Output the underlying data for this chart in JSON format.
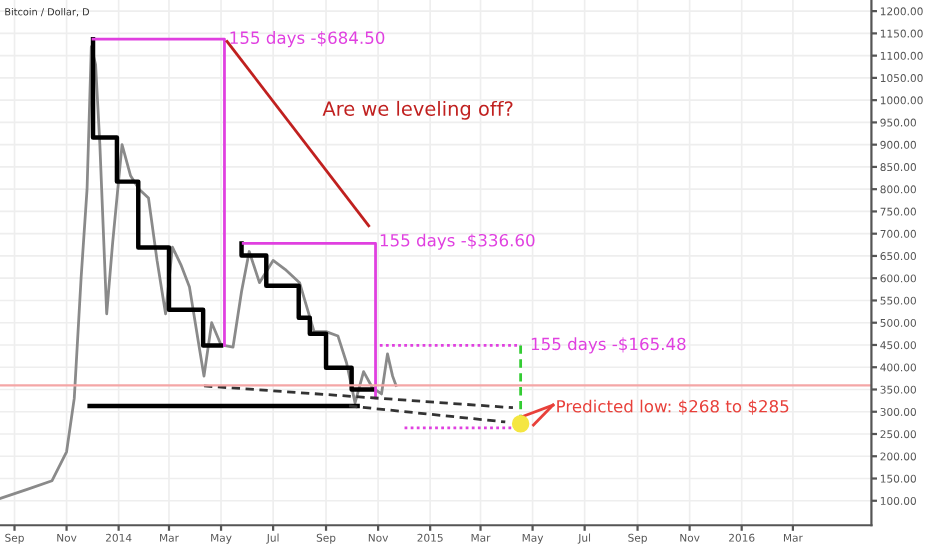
{
  "chart_data": {
    "type": "line",
    "title": "Bitcoin / Dollar, D",
    "xlim": [
      "2013-08-15",
      "2016-06-01"
    ],
    "xticks": [
      {
        "value": "2013-09-01",
        "label": "Sep"
      },
      {
        "value": "2013-11-01",
        "label": "Nov"
      },
      {
        "value": "2014-01-01",
        "label": "2014"
      },
      {
        "value": "2014-03-01",
        "label": "Mar"
      },
      {
        "value": "2014-05-01",
        "label": "May"
      },
      {
        "value": "2014-07-01",
        "label": "Jul"
      },
      {
        "value": "2014-09-01",
        "label": "Sep"
      },
      {
        "value": "2014-11-01",
        "label": "Nov"
      },
      {
        "value": "2015-01-01",
        "label": "2015"
      },
      {
        "value": "2015-03-01",
        "label": "Mar"
      },
      {
        "value": "2015-05-01",
        "label": "May"
      },
      {
        "value": "2015-07-01",
        "label": "Jul"
      },
      {
        "value": "2015-09-01",
        "label": "Sep"
      },
      {
        "value": "2015-11-01",
        "label": "Nov"
      },
      {
        "value": "2016-01-01",
        "label": "2016"
      },
      {
        "value": "2016-03-01",
        "label": "Mar"
      }
    ],
    "ylim": [
      45,
      1225
    ],
    "yticks": [
      {
        "value": 100,
        "label": "100.00"
      },
      {
        "value": 150,
        "label": "150.00"
      },
      {
        "value": 200,
        "label": "200.00"
      },
      {
        "value": 250,
        "label": "250.00"
      },
      {
        "value": 300,
        "label": "300.00"
      },
      {
        "value": 350,
        "label": "350.00"
      },
      {
        "value": 400,
        "label": "400.00"
      },
      {
        "value": 450,
        "label": "450.00"
      },
      {
        "value": 500,
        "label": "500.00"
      },
      {
        "value": 550,
        "label": "550.00"
      },
      {
        "value": 600,
        "label": "600.00"
      },
      {
        "value": 650,
        "label": "650.00"
      },
      {
        "value": 700,
        "label": "700.00"
      },
      {
        "value": 750,
        "label": "750.00"
      },
      {
        "value": 800,
        "label": "800.00"
      },
      {
        "value": 850,
        "label": "850.00"
      },
      {
        "value": 900,
        "label": "900.00"
      },
      {
        "value": 950,
        "label": "950.00"
      },
      {
        "value": 1000,
        "label": "1000.00"
      },
      {
        "value": 1050,
        "label": "1050.00"
      },
      {
        "value": 1100,
        "label": "1100.00"
      },
      {
        "value": 1150,
        "label": "1150.00"
      },
      {
        "value": 1200,
        "label": "1200.00"
      }
    ],
    "grid": true,
    "series": [
      {
        "color": "#8a8a8a",
        "x": [
          "2013-08-15",
          "2013-09-15",
          "2013-10-15",
          "2013-11-01",
          "2013-11-10",
          "2013-11-18",
          "2013-11-25",
          "2013-11-30",
          "2013-12-05",
          "2013-12-10",
          "2013-12-18",
          "2013-12-25",
          "2014-01-05",
          "2014-01-15",
          "2014-01-25",
          "2014-02-05",
          "2014-02-15",
          "2014-02-25",
          "2014-03-05",
          "2014-03-15",
          "2014-03-25",
          "2014-04-05",
          "2014-04-11",
          "2014-04-20",
          "2014-05-01",
          "2014-05-15",
          "2014-05-25",
          "2014-06-03",
          "2014-06-15",
          "2014-07-01",
          "2014-07-15",
          "2014-08-01",
          "2014-08-18",
          "2014-09-01",
          "2014-09-15",
          "2014-09-25",
          "2014-10-05",
          "2014-10-15",
          "2014-10-25",
          "2014-11-05",
          "2014-11-12",
          "2014-11-18",
          "2014-11-22"
        ],
        "values": [
          105,
          125,
          145,
          210,
          330,
          600,
          800,
          1120,
          1080,
          900,
          520,
          680,
          900,
          830,
          800,
          780,
          640,
          520,
          670,
          630,
          580,
          450,
          380,
          500,
          450,
          445,
          570,
          660,
          590,
          640,
          620,
          590,
          480,
          480,
          470,
          410,
          320,
          390,
          355,
          340,
          430,
          380,
          359
        ]
      },
      {
        "color": "#000000",
        "x": [
          "2013-12-02",
          "2013-12-02",
          "2013-12-30",
          "2013-12-30",
          "2014-01-24",
          "2014-01-24",
          "2014-03-01",
          "2014-03-01",
          "2014-04-10",
          "2014-04-10",
          "2014-05-01"
        ],
        "values": [
          1137,
          916,
          916,
          817,
          817,
          669,
          669,
          529,
          529,
          449,
          449
        ]
      },
      {
        "color": "#000000",
        "x": [
          "2014-05-25",
          "2014-05-25",
          "2014-06-23",
          "2014-06-23",
          "2014-07-31",
          "2014-07-31",
          "2014-08-13",
          "2014-08-13",
          "2014-09-01",
          "2014-09-01",
          "2014-10-01",
          "2014-10-01",
          "2014-10-26"
        ],
        "values": [
          678,
          651,
          651,
          583,
          583,
          511,
          511,
          475,
          475,
          399,
          399,
          350,
          350
        ]
      },
      {
        "color": "#e040e0",
        "x": [
          "2013-12-02",
          "2014-05-05",
          "2014-05-05"
        ],
        "values": [
          1137,
          1137,
          449
        ]
      },
      {
        "color": "#e040e0",
        "x": [
          "2014-05-27",
          "2014-10-29",
          "2014-10-29"
        ],
        "values": [
          678,
          678,
          331
        ]
      },
      {
        "color": "#e040e0",
        "line_style": "dotted",
        "x": [
          "2014-11-03",
          "2015-04-17"
        ],
        "values": [
          449,
          449
        ]
      },
      {
        "color": "#e040e0",
        "line_style": "dotted",
        "x": [
          "2014-12-02",
          "2015-04-17"
        ],
        "values": [
          264,
          264
        ]
      },
      {
        "color": "#33cc33",
        "line_style": "dashed",
        "x": [
          "2015-04-17",
          "2015-04-17"
        ],
        "values": [
          449,
          264
        ]
      },
      {
        "color": "#000000",
        "x": [
          "2013-11-28",
          "2014-10-08"
        ],
        "values": [
          313,
          313
        ]
      },
      {
        "color": "#333333",
        "line_style": "dashed",
        "x": [
          "2014-04-11",
          "2015-04-08"
        ],
        "values": [
          358,
          309
        ]
      },
      {
        "color": "#333333",
        "line_style": "dashed",
        "x": [
          "2014-09-28",
          "2015-03-30"
        ],
        "values": [
          313,
          277
        ]
      },
      {
        "color": "#c0201f",
        "x": [
          "2014-05-08",
          "2014-10-21"
        ],
        "values": [
          1132,
          718
        ]
      },
      {
        "color": "#e8403a",
        "x": [
          "2015-04-20",
          "2015-05-25"
        ],
        "values": [
          290,
          315
        ]
      },
      {
        "color": "#e8403a",
        "x": [
          "2015-05-02",
          "2015-05-25"
        ],
        "values": [
          270,
          315
        ]
      },
      {
        "type": "scatter",
        "color": "#f5e642",
        "x": [
          "2015-04-17"
        ],
        "values": [
          273
        ]
      }
    ],
    "ref_lines": [
      {
        "axis": "y",
        "value": 359,
        "color": "#f4a6a6"
      }
    ],
    "annotations": [
      {
        "text": "155 days -$684.50",
        "x": "2014-05-10",
        "y": 1137
      },
      {
        "text": "155 days -$336.60",
        "x": "2014-11-02",
        "y": 682
      },
      {
        "text": "155 days -$165.48",
        "x": "2015-04-28",
        "y": 449
      },
      "Are we leveling off?",
      {
        "text": "Predicted low: $268 to $285",
        "x": "2015-05-28",
        "y": 309
      }
    ]
  }
}
